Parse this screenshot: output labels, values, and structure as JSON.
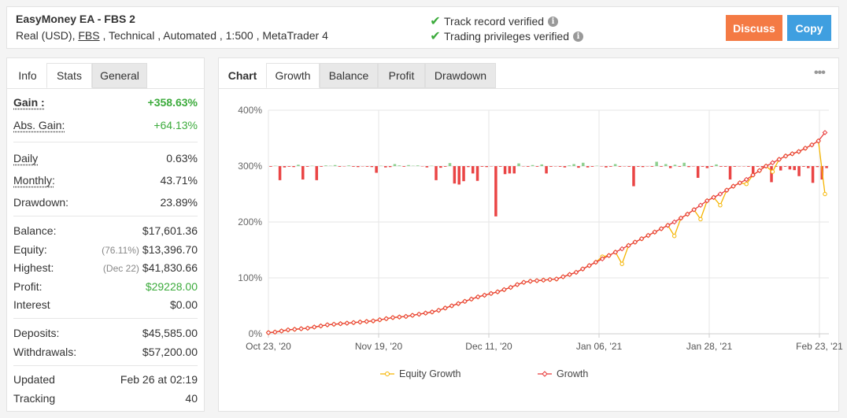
{
  "header": {
    "title": "EasyMoney EA - FBS 2",
    "subtitle_pre": "Real (USD), ",
    "subtitle_broker": "FBS",
    "subtitle_post": " , Technical , Automated , 1:500 , MetaTrader 4",
    "verified": [
      {
        "label": "Track record verified"
      },
      {
        "label": "Trading privileges verified"
      }
    ],
    "discuss_label": "Discuss",
    "copy_label": "Copy",
    "colors": {
      "discuss": "#f47a44",
      "copy": "#3f9fe0",
      "check": "#3cab3c"
    }
  },
  "left": {
    "tabs": [
      "Info",
      "Stats",
      "General"
    ],
    "active_tab": "Stats",
    "gain": {
      "label": "Gain :",
      "value": "+358.63%"
    },
    "abs_gain": {
      "label": "Abs. Gain:",
      "value": "+64.13%"
    },
    "daily": {
      "label": "Daily",
      "value": "0.63%"
    },
    "monthly": {
      "label": "Monthly:",
      "value": "43.71%"
    },
    "drawdown": {
      "label": "Drawdown:",
      "value": "23.89%"
    },
    "balance": {
      "label": "Balance:",
      "value": "$17,601.36"
    },
    "equity": {
      "label": "Equity:",
      "paren": "(76.11%)",
      "value": "$13,396.70"
    },
    "highest": {
      "label": "Highest:",
      "paren": "(Dec 22)",
      "value": "$41,830.66"
    },
    "profit": {
      "label": "Profit:",
      "value": "$29228.00"
    },
    "interest": {
      "label": "Interest",
      "value": "$0.00"
    },
    "deposits": {
      "label": "Deposits:",
      "value": "$45,585.00"
    },
    "withdrawals": {
      "label": "Withdrawals:",
      "value": "$57,200.00"
    },
    "updated": {
      "label": "Updated",
      "value": "Feb 26 at 02:19"
    },
    "tracking": {
      "label": "Tracking",
      "value": "40"
    }
  },
  "chart_tabs": [
    "Chart",
    "Growth",
    "Balance",
    "Profit",
    "Drawdown"
  ],
  "chart_active_tab": "Growth",
  "chart_data": {
    "type": "line",
    "y_ticks": [
      "400%",
      "300%",
      "200%",
      "100%",
      "0%"
    ],
    "ylim": [
      0,
      400
    ],
    "x_ticks": [
      "Oct 23, '20",
      "Nov 19, '20",
      "Dec 11, '20",
      "Jan 06, '21",
      "Jan 28, '21",
      "Feb 23, '21"
    ],
    "grid": true,
    "legend_position": "bottom",
    "series": [
      {
        "name": "Equity Growth",
        "color": "#f5b400"
      },
      {
        "name": "Growth",
        "color": "#e83a3a"
      }
    ],
    "growth": [
      2,
      3,
      5,
      7,
      8,
      9,
      10,
      12,
      14,
      16,
      17,
      18,
      19,
      20,
      21,
      22,
      23,
      25,
      27,
      29,
      30,
      31,
      33,
      35,
      37,
      39,
      42,
      46,
      50,
      54,
      58,
      62,
      66,
      69,
      72,
      75,
      79,
      83,
      88,
      92,
      94,
      95,
      96,
      97,
      98,
      102,
      106,
      110,
      116,
      122,
      128,
      134,
      140,
      146,
      152,
      158,
      164,
      170,
      176,
      182,
      188,
      194,
      200,
      207,
      214,
      222,
      230,
      238,
      244,
      250,
      257,
      264,
      270,
      276,
      284,
      292,
      300,
      306,
      312,
      318,
      322,
      326,
      332,
      338,
      345,
      360
    ],
    "equity": [
      2,
      3,
      5,
      7,
      8,
      9,
      10,
      12,
      14,
      16,
      17,
      18,
      19,
      20,
      21,
      22,
      23,
      25,
      27,
      29,
      30,
      31,
      33,
      35,
      37,
      39,
      42,
      46,
      50,
      54,
      58,
      62,
      66,
      69,
      72,
      75,
      79,
      83,
      88,
      92,
      94,
      95,
      96,
      97,
      98,
      102,
      106,
      110,
      116,
      122,
      128,
      138,
      140,
      146,
      125,
      158,
      164,
      170,
      176,
      182,
      188,
      194,
      175,
      207,
      214,
      222,
      205,
      238,
      244,
      230,
      257,
      264,
      270,
      268,
      284,
      292,
      300,
      290,
      312,
      318,
      322,
      326,
      332,
      338,
      345,
      250
    ],
    "daily_bars": [
      -2,
      1,
      -42,
      -4,
      -2,
      -3,
      4,
      -40,
      -2,
      1,
      -42,
      -2,
      2,
      1,
      3,
      -2,
      -1,
      2,
      -2,
      -3,
      -1,
      -2,
      -3,
      -20,
      1,
      -4,
      -3,
      6,
      2,
      -2,
      3,
      1,
      2,
      -1,
      -4,
      1,
      -42,
      -5,
      -2,
      9,
      -52,
      -55,
      -45,
      -3,
      -22,
      -44,
      -2,
      -3,
      -1,
      -150,
      -2,
      -24,
      -22,
      -22,
      8,
      -1,
      -2,
      3,
      -2,
      5,
      -22,
      -2,
      -1,
      -2,
      -4,
      2,
      6,
      -5,
      10,
      -4,
      -2,
      1,
      -1,
      -4,
      -2,
      6,
      -2,
      -1,
      -2,
      -60,
      -2,
      -3,
      -1,
      -2,
      13,
      -2,
      6,
      -6,
      4,
      -2,
      10,
      -3,
      -1,
      -35,
      -2,
      -6,
      -2,
      5,
      -2,
      -2,
      -40,
      -2,
      -1,
      -1,
      -2,
      -28,
      -2,
      -4,
      -2,
      -48,
      -2,
      -13,
      -2,
      -10,
      -12,
      -30,
      -2,
      -6,
      -50,
      -3,
      -40,
      -6
    ]
  }
}
